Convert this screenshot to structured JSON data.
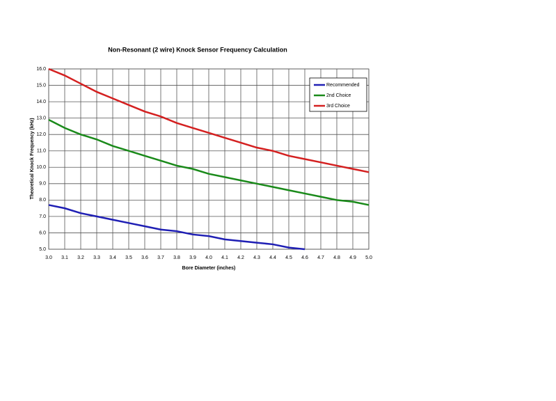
{
  "chart_data": {
    "type": "line",
    "title": "Non-Resonant (2 wire) Knock Sensor Frequency Calculation",
    "x_label": "Bore Diameter (inches)",
    "y_label": "Theoretical Knock Frequency (kHz)",
    "x": [
      3.0,
      3.1,
      3.2,
      3.3,
      3.4,
      3.5,
      3.6,
      3.7,
      3.8,
      3.9,
      4.0,
      4.1,
      4.2,
      4.3,
      4.4,
      4.5,
      4.6,
      4.7,
      4.8,
      4.9,
      5.0
    ],
    "series": [
      {
        "name": "Recommended",
        "color": "#1f1fb4",
        "values": [
          7.7,
          7.5,
          7.2,
          7.0,
          6.8,
          6.6,
          6.4,
          6.2,
          6.1,
          5.9,
          5.8,
          5.6,
          5.5,
          5.4,
          5.3,
          5.1,
          5.0,
          null,
          null,
          null,
          null
        ]
      },
      {
        "name": "2nd Choice",
        "color": "#1a8a1a",
        "values": [
          12.9,
          12.4,
          12.0,
          11.7,
          11.3,
          11.0,
          10.7,
          10.4,
          10.1,
          9.9,
          9.6,
          9.4,
          9.2,
          9.0,
          8.8,
          8.6,
          8.4,
          8.2,
          8.0,
          7.9,
          7.7
        ]
      },
      {
        "name": "3rd Choice",
        "color": "#d42020",
        "values": [
          16.0,
          15.6,
          15.1,
          14.6,
          14.2,
          13.8,
          13.4,
          13.1,
          12.7,
          12.4,
          12.1,
          11.8,
          11.5,
          11.2,
          11.0,
          10.7,
          10.5,
          10.3,
          10.1,
          9.9,
          9.7
        ]
      }
    ],
    "xlim": [
      3.0,
      5.0
    ],
    "ylim": [
      5.0,
      16.0
    ],
    "xticks": [
      {
        "value": 3.0,
        "label": "3.0"
      },
      3.1,
      3.2,
      3.3,
      3.4,
      3.5,
      3.6,
      3.7,
      3.8,
      3.9,
      {
        "value": 4.0,
        "label": "4.0"
      },
      4.1,
      4.2,
      4.3,
      4.4,
      4.5,
      4.6,
      4.7,
      4.8,
      4.9,
      {
        "value": 5.0,
        "label": "5.0"
      }
    ],
    "yticks": [
      {
        "value": 5.0,
        "label": "5.0"
      },
      {
        "value": 6.0,
        "label": "6.0"
      },
      {
        "value": 7.0,
        "label": "7.0"
      },
      {
        "value": 8.0,
        "label": "8.0"
      },
      {
        "value": 9.0,
        "label": "9.0"
      },
      {
        "value": 10.0,
        "label": "10.0"
      },
      {
        "value": 11.0,
        "label": "11.0"
      },
      {
        "value": 12.0,
        "label": "12.0"
      },
      {
        "value": 13.0,
        "label": "13.0"
      },
      {
        "value": 14.0,
        "label": "14.0"
      },
      {
        "value": 15.0,
        "label": "15.0"
      },
      {
        "value": 16.0,
        "label": "16.0"
      }
    ],
    "grid": true,
    "legend": "upper right"
  }
}
